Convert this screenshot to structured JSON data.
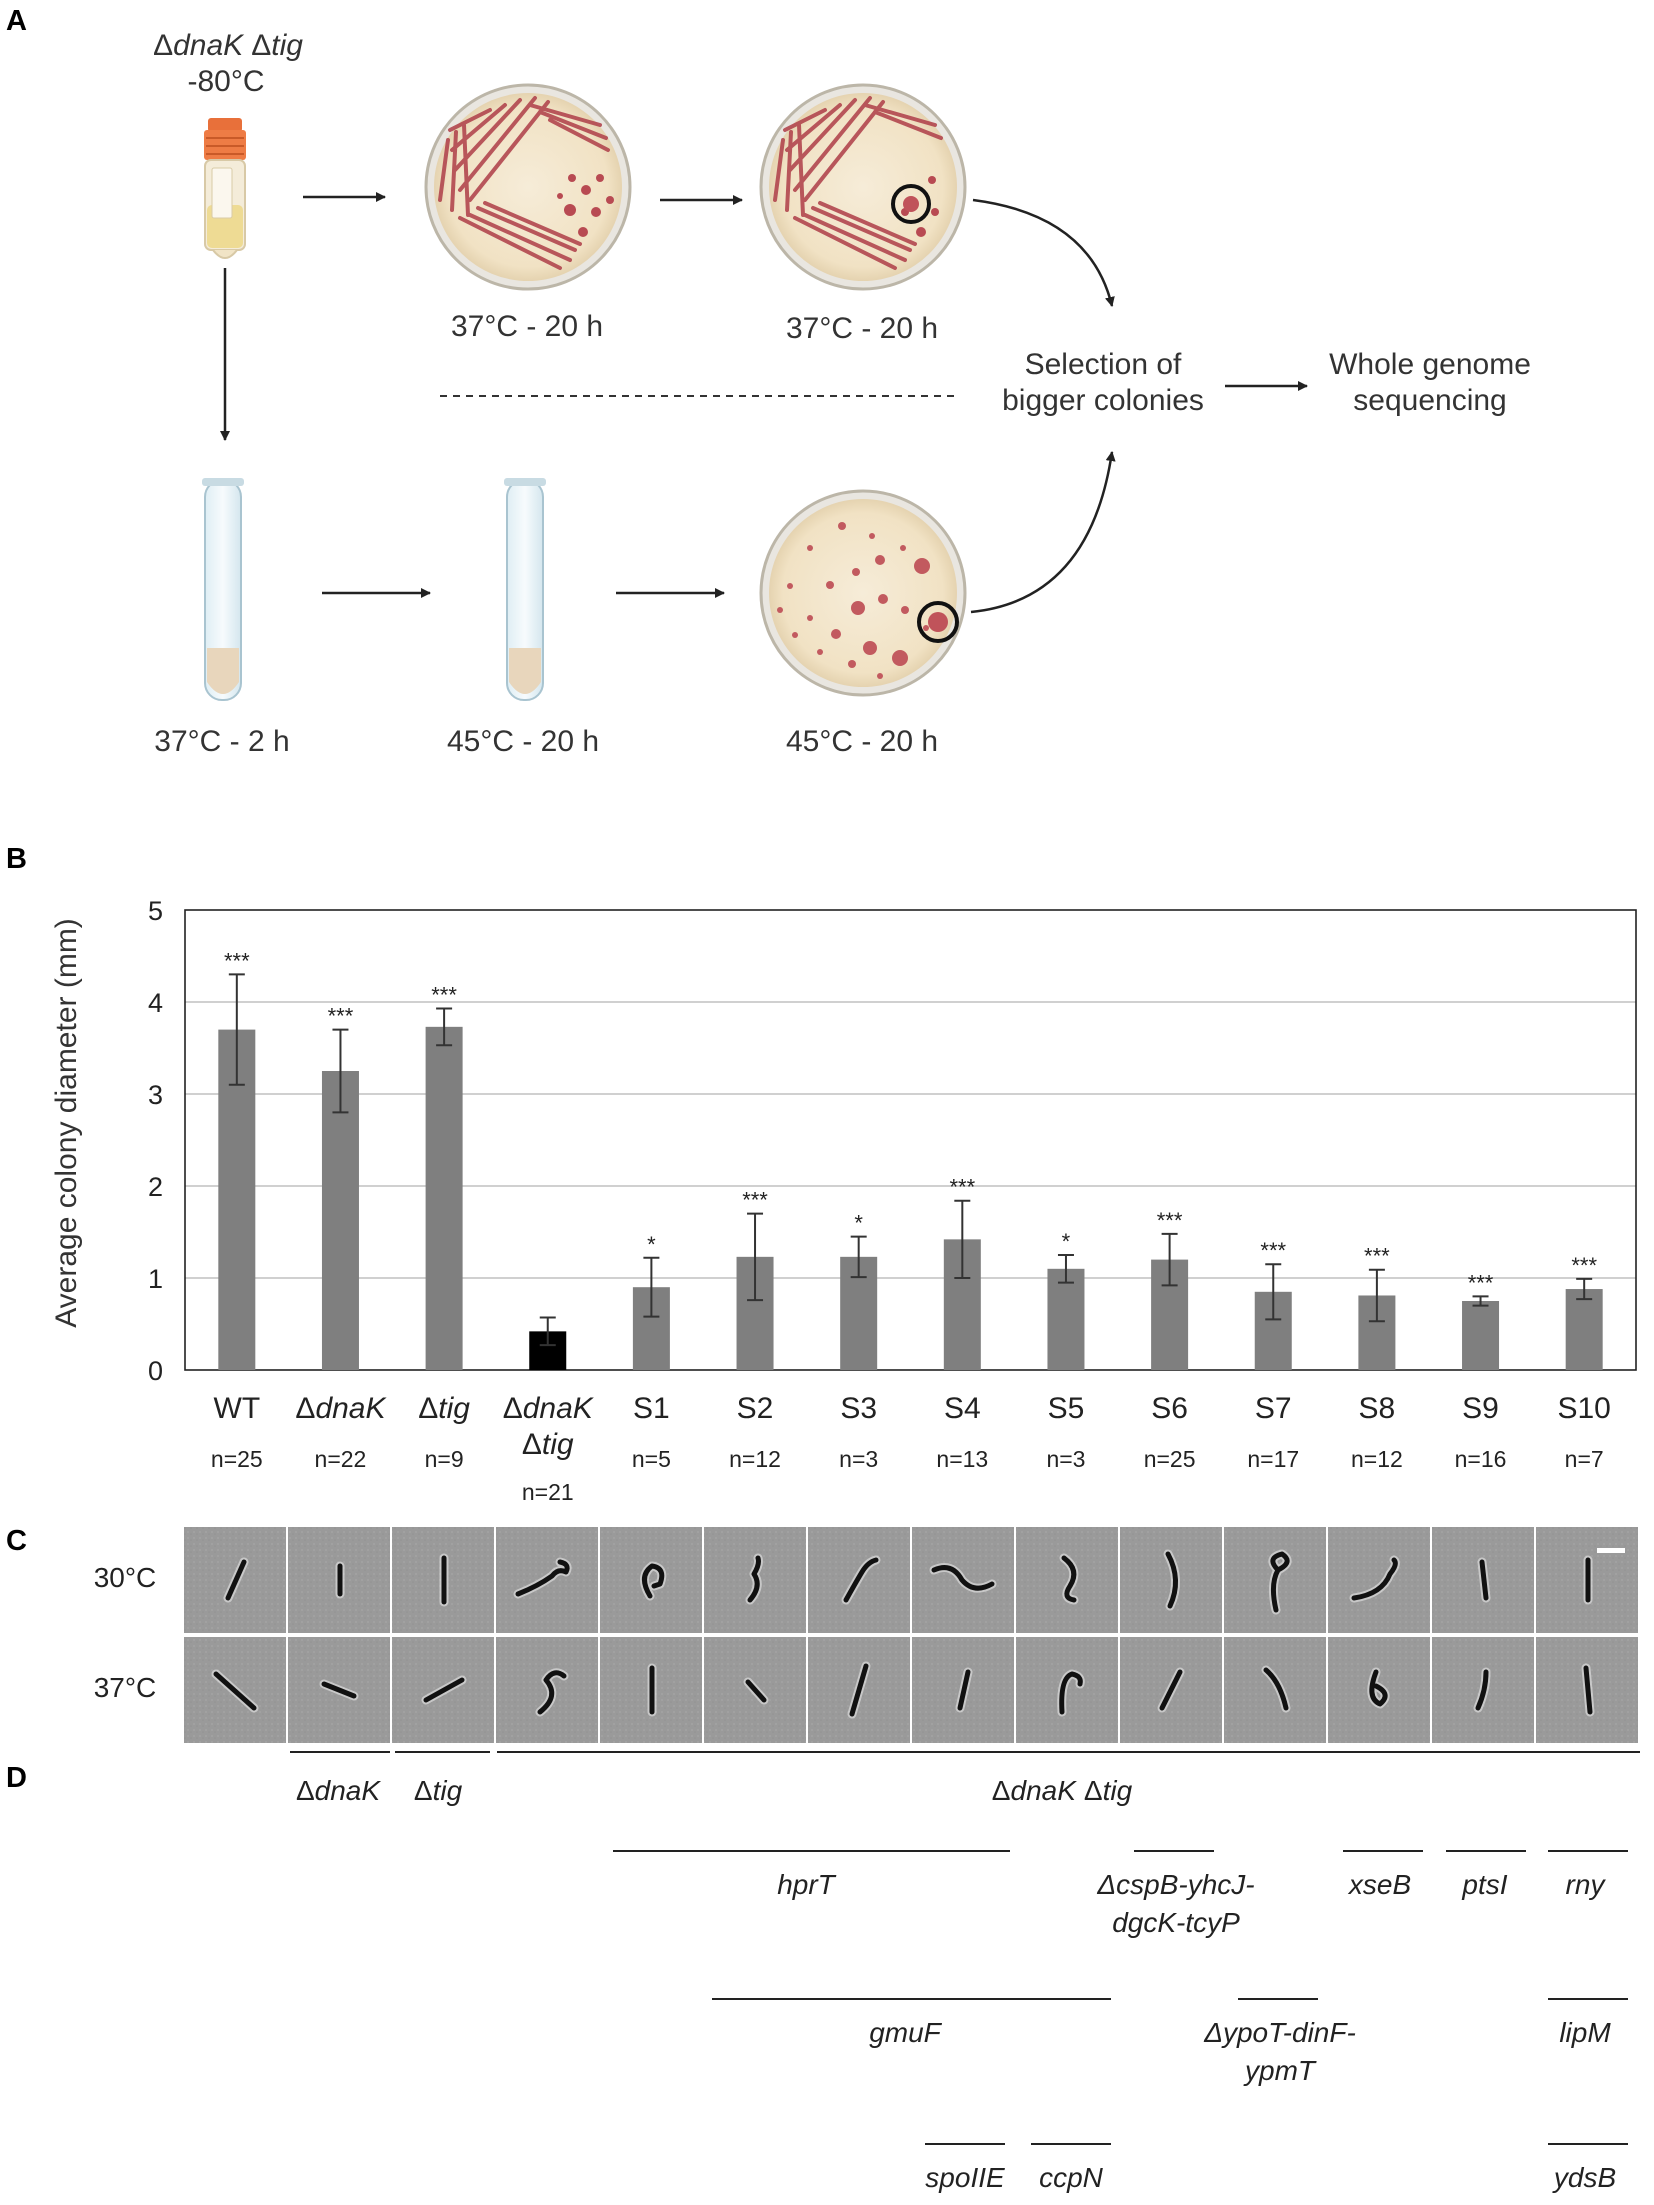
{
  "panels": {
    "a": "A",
    "b": "B",
    "c": "C",
    "d": "D"
  },
  "panel_a": {
    "strain_prefix": "Δ",
    "strain_gene1": "dnaK",
    "strain_gene2": "tig",
    "storage_temp": "-80°C",
    "plate1_label": "37°C - 20 h",
    "plate2_label": "37°C - 20 h",
    "plate3_label": "45°C - 20 h",
    "tube1_label": "37°C - 2 h",
    "tube2_label": "45°C - 20 h",
    "selection_line1": "Selection of",
    "selection_line2": "bigger colonies",
    "wgs_line1": "Whole genome",
    "wgs_line2": "sequencing"
  },
  "chart_data": {
    "type": "bar",
    "categories": [
      "WT",
      "ΔdnaK",
      "Δtig",
      "ΔdnaK Δtig",
      "S1",
      "S2",
      "S3",
      "S4",
      "S5",
      "S6",
      "S7",
      "S8",
      "S9",
      "S10"
    ],
    "values": [
      3.7,
      3.25,
      3.73,
      0.42,
      0.9,
      1.23,
      1.23,
      1.42,
      1.1,
      1.2,
      0.85,
      0.81,
      0.75,
      0.88
    ],
    "errors": [
      0.6,
      0.45,
      0.2,
      0.15,
      0.32,
      0.47,
      0.22,
      0.42,
      0.15,
      0.28,
      0.3,
      0.28,
      0.05,
      0.11
    ],
    "significance": [
      "***",
      "***",
      "***",
      "",
      "*",
      "***",
      "*",
      "***",
      "*",
      "***",
      "***",
      "***",
      "***",
      "***"
    ],
    "n_labels": [
      "n=25",
      "n=22",
      "n=9",
      "n=21",
      "n=5",
      "n=12",
      "n=3",
      "n=13",
      "n=3",
      "n=25",
      "n=17",
      "n=12",
      "n=16",
      "n=7"
    ],
    "bar_colors": [
      "#7f7f7f",
      "#7f7f7f",
      "#7f7f7f",
      "#000000",
      "#7f7f7f",
      "#7f7f7f",
      "#7f7f7f",
      "#7f7f7f",
      "#7f7f7f",
      "#7f7f7f",
      "#7f7f7f",
      "#7f7f7f",
      "#7f7f7f",
      "#7f7f7f"
    ],
    "ylabel": "Average colony diameter (mm)",
    "ylim": [
      0,
      5
    ],
    "yticks": [
      0,
      1,
      2,
      3,
      4,
      5
    ],
    "grid": true
  },
  "panel_c": {
    "row1_label": "30°C",
    "row2_label": "37°C"
  },
  "panel_d": {
    "delta": "Δ",
    "dnak": "dnaK",
    "tig": "tig",
    "double_a": "dnaK",
    "double_b": "tig",
    "hprT": "hprT",
    "cspB_line1": "ΔcspB-yhcJ-",
    "cspB_line2": "dgcK-tcyP",
    "xseB": "xseB",
    "ptsI": "ptsI",
    "rny": "rny",
    "gmuF": "gmuF",
    "ypoT_line1": "ΔypoT-dinF-",
    "ypoT_line2": "ypmT",
    "lipM": "lipM",
    "spoIIE": "spoIIE",
    "ccpN": "ccpN",
    "ydsB": "ydsB"
  }
}
